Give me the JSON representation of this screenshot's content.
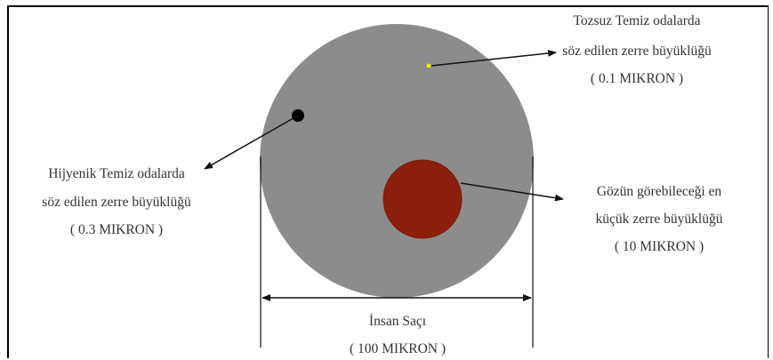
{
  "labels": {
    "tozsuz": {
      "line1": "Tozsuz Temiz odalarda",
      "line2": "söz edilen zerre büyüklüğü",
      "size": "( 0.1 MIKRON )"
    },
    "hijyenik": {
      "line1": "Hijyenik Temiz odalarda",
      "line2": "söz edilen zerre büyüklüğü",
      "size": "( 0.3 MIKRON )"
    },
    "gozun": {
      "line1": "Gözün görebileceği en",
      "line2": "küçük zerre büyüklüğü",
      "size": "( 10 MIKRON )"
    },
    "sac": {
      "line1": "İnsan Saçı",
      "size": "( 100 MIKRON )"
    }
  },
  "colors": {
    "hair": "#8c8c8c",
    "visible_particle": "#8b1e0c",
    "hygienic_particle": "#000000",
    "dustfree_particle": "#f2e600"
  }
}
